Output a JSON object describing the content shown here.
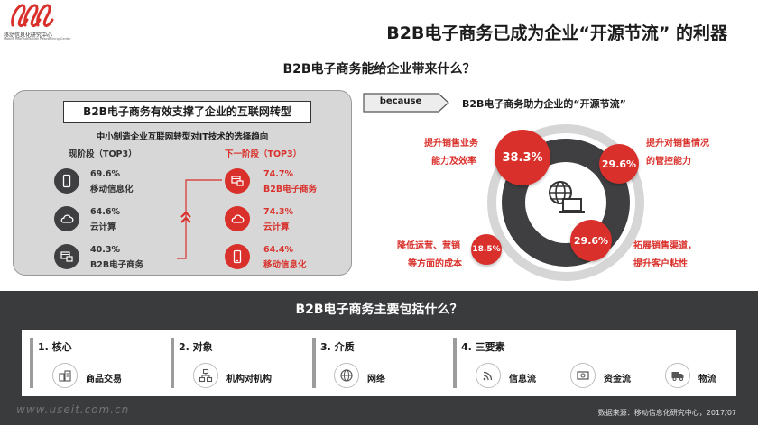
{
  "header": {
    "logo_text": "移动信息化研究中心",
    "logo_subtext": "Mobile Informatization Researching Center",
    "title": "B2B电子商务已成为企业“开源节流” 的利器",
    "question": "B2B电子商务能给企业带来什么？"
  },
  "left_panel": {
    "title": "B2B电子商务有效支撑了企业的互联网转型",
    "subtitle": "中小制造企业互联网转型对IT技术的选择趋向",
    "current_label": "现阶段（TOP3）",
    "next_label": "下一阶段（TOP3）",
    "current": [
      {
        "pct": "69.6%",
        "name": "移动信息化",
        "icon": "phone-icon"
      },
      {
        "pct": "64.6%",
        "name": "云计算",
        "icon": "cloud-icon"
      },
      {
        "pct": "40.3%",
        "name": "B2B电子商务",
        "icon": "b2b-icon"
      }
    ],
    "next": [
      {
        "pct": "74.7%",
        "name": "B2B电子商务",
        "icon": "b2b-icon"
      },
      {
        "pct": "74.3%",
        "name": "云计算",
        "icon": "cloud-icon"
      },
      {
        "pct": "64.4%",
        "name": "移动信息化",
        "icon": "phone-icon"
      }
    ]
  },
  "because_label": "because",
  "right_panel": {
    "heading": "B2B电子商务助力企业的“开源节流”",
    "bubbles": [
      {
        "value": "38.3%",
        "lines": [
          "提升销售业务",
          "能力及效率"
        ]
      },
      {
        "value": "29.6%",
        "lines": [
          "提升对销售情况",
          "的管控能力"
        ]
      },
      {
        "value": "18.5%",
        "lines": [
          "降低运营、营销",
          "等方面的成本"
        ]
      },
      {
        "value": "29.6%",
        "lines": [
          "拓展销售渠道，",
          "提升客户粘性"
        ]
      }
    ]
  },
  "bottom": {
    "question": "B2B电子商务主要包括什么？",
    "categories": [
      {
        "title": "1. 核心",
        "items": [
          {
            "label": "商品交易",
            "icon": "goods-icon"
          }
        ]
      },
      {
        "title": "2. 对象",
        "items": [
          {
            "label": "机构对机构",
            "icon": "org-chart-icon"
          }
        ]
      },
      {
        "title": "3. 介质",
        "items": [
          {
            "label": "网络",
            "icon": "globe-icon"
          }
        ]
      },
      {
        "title": "4. 三要素",
        "items": [
          {
            "label": "信息流",
            "icon": "signal-icon"
          },
          {
            "label": "资金流",
            "icon": "money-icon"
          },
          {
            "label": "物流",
            "icon": "truck-icon"
          }
        ]
      }
    ]
  },
  "watermark": "www.useit.com.cn",
  "source": "数据来源：移动信息化研究中心，2017/07",
  "colors": {
    "accent": "#d9302b",
    "dark": "#3a3b3d",
    "panel": "#d7d7d7"
  }
}
